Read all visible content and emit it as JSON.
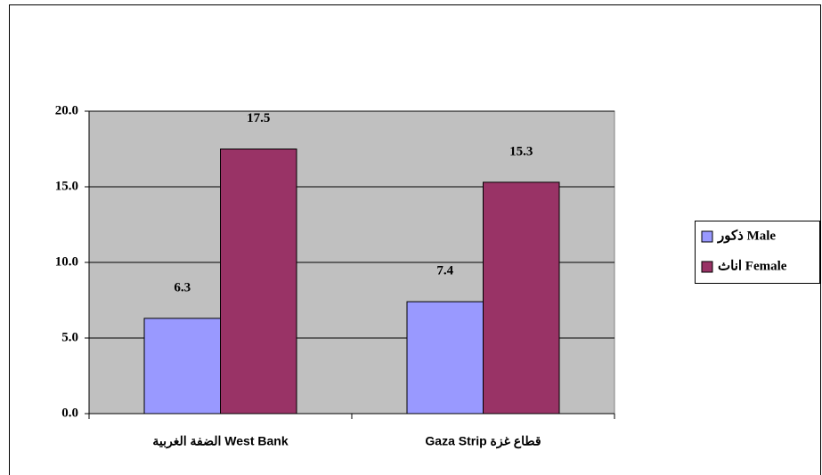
{
  "chart_data": {
    "type": "bar",
    "categories": [
      "الضفة الغربية  West Bank",
      "Gaza Strip  قطاع غزة"
    ],
    "series": [
      {
        "name": "ذكور Male",
        "color": "#9999ff",
        "values": [
          6.3,
          7.4
        ]
      },
      {
        "name": "اناث Female",
        "color": "#993366",
        "values": [
          17.5,
          15.3
        ]
      }
    ],
    "ylim": [
      0,
      20
    ],
    "yticks": [
      {
        "value": 0,
        "label": "0.0"
      },
      {
        "value": 5,
        "label": "5.0"
      },
      {
        "value": 10,
        "label": "10.0"
      },
      {
        "value": 15,
        "label": "15.0"
      },
      {
        "value": 20,
        "label": "20.0"
      }
    ],
    "grid": true,
    "legend": "right",
    "plot_background": "#c0c0c0"
  }
}
